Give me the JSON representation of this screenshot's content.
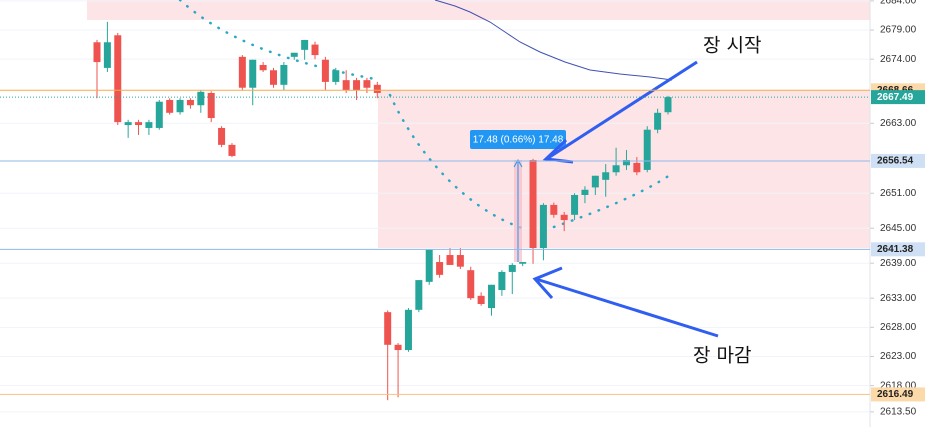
{
  "chart_data": {
    "type": "candlestick",
    "up_color": "#26a69a",
    "down_color": "#ef5350",
    "grid": true,
    "ylim": [
      2610.9,
      2684.15
    ],
    "yticks": [
      {
        "value": 2684,
        "label": "2684.00"
      },
      {
        "value": 2679,
        "label": "2679.00"
      },
      {
        "value": 2674,
        "label": "2674.00"
      },
      {
        "value": 2663,
        "label": "2663.00"
      },
      {
        "value": 2651,
        "label": "2651.00"
      },
      {
        "value": 2645,
        "label": "2645.00"
      },
      {
        "value": 2639,
        "label": "2639.00"
      },
      {
        "value": 2633,
        "label": "2633.00"
      },
      {
        "value": 2628,
        "label": "2628.00"
      },
      {
        "value": 2623,
        "label": "2623.00"
      },
      {
        "value": 2618,
        "label": "2618.00"
      },
      {
        "value": 2613.5,
        "label": "2613.50"
      }
    ],
    "open": [
      2676.9,
      2672.5,
      2678.1,
      2662.7,
      2663.2,
      2662.2,
      2662.2,
      2667.0,
      2664.9,
      2667.0,
      2666.1,
      2668.2,
      2662.2,
      2659.3,
      2674.4,
      2669.1,
      2673.0,
      2672.1,
      2669.6,
      2674.4,
      2675.6,
      2676.5,
      2673.9,
      2670.1,
      2670.4,
      2670.4,
      2670.4,
      2669.6,
      2630.6,
      2625.0,
      2624.1,
      2631.0,
      2635.8,
      2639.2,
      2640.4,
      2640.4,
      2637.8,
      2633.4,
      2631.3,
      2634.4,
      2637.5,
      2638.9,
      2656.7,
      2641.6,
      2649.0,
      2647.3,
      2647.3,
      2650.7,
      2652.0,
      2653.3,
      2654.6,
      2655.8,
      2656.2,
      2655.0,
      2661.9,
      2664.9
    ],
    "high": [
      2677.3,
      2680.4,
      2678.5,
      2663.6,
      2663.6,
      2663.6,
      2667.0,
      2667.3,
      2667.3,
      2667.3,
      2668.7,
      2668.5,
      2662.5,
      2659.6,
      2674.7,
      2673.9,
      2673.5,
      2672.5,
      2673.5,
      2675.1,
      2677.3,
      2677.0,
      2674.4,
      2672.5,
      2672.1,
      2670.8,
      2670.8,
      2670.1,
      2630.9,
      2625.3,
      2631.3,
      2636.1,
      2641.3,
      2640.4,
      2641.6,
      2641.6,
      2638.4,
      2634.0,
      2635.3,
      2637.8,
      2639.0,
      2639.2,
      2656.9,
      2649.3,
      2649.4,
      2647.8,
      2651.0,
      2652.2,
      2654.0,
      2656.0,
      2658.8,
      2658.4,
      2657.2,
      2662.5,
      2665.5,
      2667.7
    ],
    "low": [
      2667.3,
      2671.8,
      2662.7,
      2660.5,
      2661.0,
      2661.0,
      2661.9,
      2664.5,
      2664.5,
      2665.5,
      2664.8,
      2663.2,
      2658.9,
      2657.2,
      2668.7,
      2666.1,
      2671.8,
      2669.1,
      2668.7,
      2673.9,
      2673.9,
      2674.0,
      2668.7,
      2669.6,
      2668.2,
      2667.0,
      2668.2,
      2667.3,
      2615.5,
      2616.0,
      2623.8,
      2630.6,
      2635.3,
      2636.5,
      2638.7,
      2638.0,
      2632.7,
      2631.7,
      2630.0,
      2633.4,
      2633.7,
      2638.5,
      2638.9,
      2639.5,
      2646.8,
      2644.5,
      2646.4,
      2649.3,
      2650.7,
      2650.4,
      2654.0,
      2655.0,
      2654.1,
      2654.6,
      2661.3,
      2664.5
    ],
    "close": [
      2673.5,
      2676.9,
      2663.2,
      2663.2,
      2662.7,
      2663.2,
      2666.7,
      2664.8,
      2667.0,
      2666.1,
      2668.4,
      2663.9,
      2659.3,
      2657.4,
      2669.1,
      2673.9,
      2672.1,
      2669.6,
      2673.0,
      2675.1,
      2677.3,
      2674.7,
      2670.1,
      2672.1,
      2668.7,
      2668.7,
      2669.1,
      2668.2,
      2625.0,
      2624.1,
      2631.0,
      2636.1,
      2641.3,
      2637.0,
      2638.7,
      2638.4,
      2633.0,
      2632.0,
      2635.3,
      2637.5,
      2638.7,
      2639.2,
      2641.6,
      2649.0,
      2647.3,
      2646.4,
      2650.7,
      2651.6,
      2654.0,
      2654.6,
      2655.8,
      2656.7,
      2654.6,
      2661.9,
      2664.8,
      2667.49
    ],
    "price_lines": [
      {
        "value": 2668.66,
        "color": "#f7a94b",
        "label_bg": "#fcd9a8",
        "label_color": "#222",
        "dash": "none"
      },
      {
        "value": 2667.49,
        "color": "#26a69a",
        "label_bg": "#26a69a",
        "label_color": "#fff",
        "dash": "1 2"
      },
      {
        "value": 2656.54,
        "color": "#8fb8ea",
        "label_bg": "#cfe0f5",
        "label_color": "#222",
        "dash": "none"
      },
      {
        "value": 2641.38,
        "color": "#8fb8ea",
        "label_bg": "#cfe0f5",
        "label_color": "#222",
        "dash": "none"
      },
      {
        "value": 2616.49,
        "color": "#f7c27c",
        "label_bg": "#fcd9a8",
        "label_color": "#222",
        "dash": "none"
      }
    ],
    "measure_label": "17.48 (0.66%) 17.48",
    "annotations": [
      "장 시작",
      "장 마감"
    ]
  }
}
